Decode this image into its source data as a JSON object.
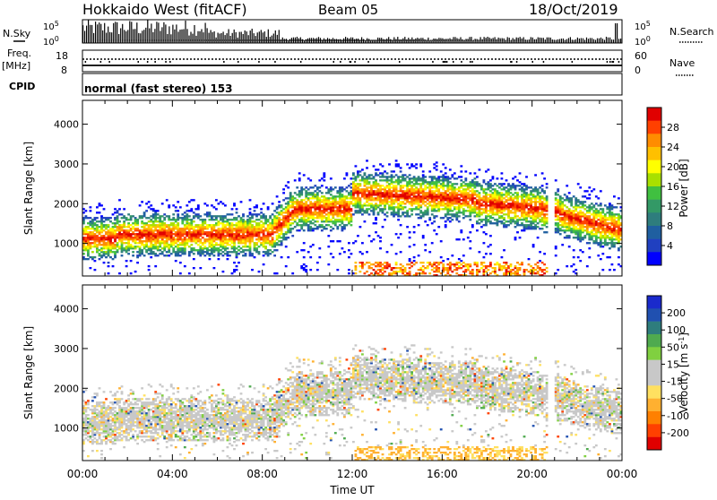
{
  "header": {
    "station": "Hokkaido West (fitACF)",
    "beam": "Beam 05",
    "date": "18/Oct/2019"
  },
  "noise_panel": {
    "left_label": "N.Sky",
    "right_label": "N.Search",
    "tick_top": "10^5",
    "tick_bottom": "10^0",
    "tick_top_right": "10^5",
    "tick_bottom_right": "10^0"
  },
  "freq_panel": {
    "left_label_1": "Freq.",
    "left_label_2": "[MHz]",
    "left_tick_top": "18",
    "left_tick_bottom": "8",
    "right_label": "Nave",
    "right_tick_top": "60",
    "right_tick_bottom": "0"
  },
  "cpid": {
    "label": "CPID",
    "mode": "normal (fast stereo) 153"
  },
  "chart_data": [
    {
      "type": "heatmap",
      "name": "Power",
      "ylabel": "Slant Range [km]",
      "xlabel": "",
      "ylim": [
        180,
        4600
      ],
      "yticks": [
        1000,
        2000,
        3000,
        4000
      ],
      "colorbar_label": "Power [dB]",
      "colorbar_ticks": [
        "28",
        "24",
        "20",
        "16",
        "12",
        "8",
        "4"
      ],
      "colorbar_colors": [
        "#e00000",
        "#ff4000",
        "#ff8c00",
        "#ffc000",
        "#ffff00",
        "#a8e000",
        "#40c040",
        "#339966",
        "#2e7d7d",
        "#1f5fa0",
        "#2040c0",
        "#0000ff"
      ]
    },
    {
      "type": "heatmap",
      "name": "Velocity",
      "ylabel": "Slant Range [km]",
      "xlabel": "Time UT",
      "ylim": [
        180,
        4600
      ],
      "yticks": [
        1000,
        2000,
        3000,
        4000
      ],
      "colorbar_label": "Velocity [m s^-1]",
      "colorbar_ticks": [
        "200",
        "100",
        "50",
        "15",
        "-15",
        "-50",
        "-100",
        "-200"
      ],
      "colorbar_colors": [
        "#1a2acc",
        "#2050b0",
        "#2e7d7d",
        "#4faa4f",
        "#80d040",
        "#c8c8c8",
        "#c8c8c8",
        "#ffe060",
        "#ffb030",
        "#ff8000",
        "#ff4000",
        "#e00000"
      ],
      "xticks": [
        "00:00",
        "04:00",
        "08:00",
        "12:00",
        "16:00",
        "20:00",
        "00:00"
      ],
      "xlim": [
        0,
        24
      ]
    }
  ]
}
